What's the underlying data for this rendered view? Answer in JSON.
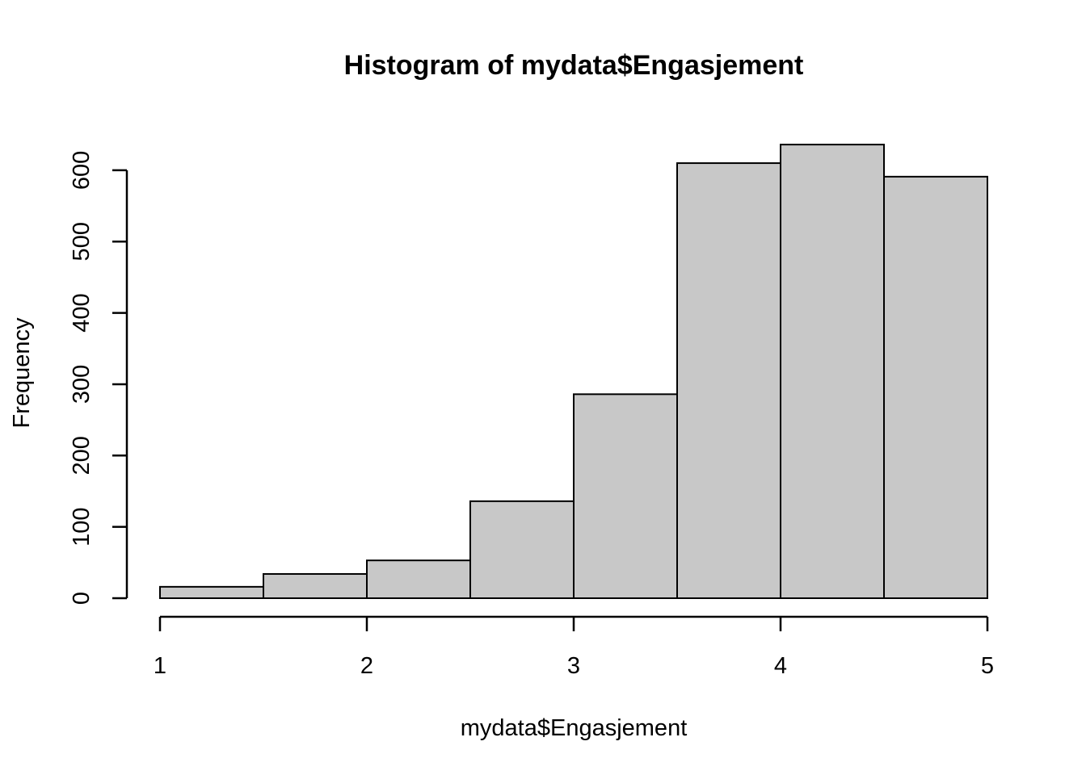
{
  "chart_data": {
    "type": "bar",
    "title": "Histogram of mydata$Engasjement",
    "xlabel": "mydata$Engasjement",
    "ylabel": "Frequency",
    "bins": [
      {
        "x0": 1.0,
        "x1": 1.5,
        "count": 16
      },
      {
        "x0": 1.5,
        "x1": 2.0,
        "count": 34
      },
      {
        "x0": 2.0,
        "x1": 2.5,
        "count": 53
      },
      {
        "x0": 2.5,
        "x1": 3.0,
        "count": 136
      },
      {
        "x0": 3.0,
        "x1": 3.5,
        "count": 286
      },
      {
        "x0": 3.5,
        "x1": 4.0,
        "count": 610
      },
      {
        "x0": 4.0,
        "x1": 4.5,
        "count": 636
      },
      {
        "x0": 4.5,
        "x1": 5.0,
        "count": 591
      }
    ],
    "xlim": [
      1,
      5
    ],
    "ylim": [
      0,
      636
    ],
    "x_ticks": [
      "1",
      "2",
      "3",
      "4",
      "5"
    ],
    "y_ticks": [
      "0",
      "100",
      "200",
      "300",
      "400",
      "500",
      "600"
    ],
    "bar_color": "#c8c8c8",
    "grid": false
  }
}
